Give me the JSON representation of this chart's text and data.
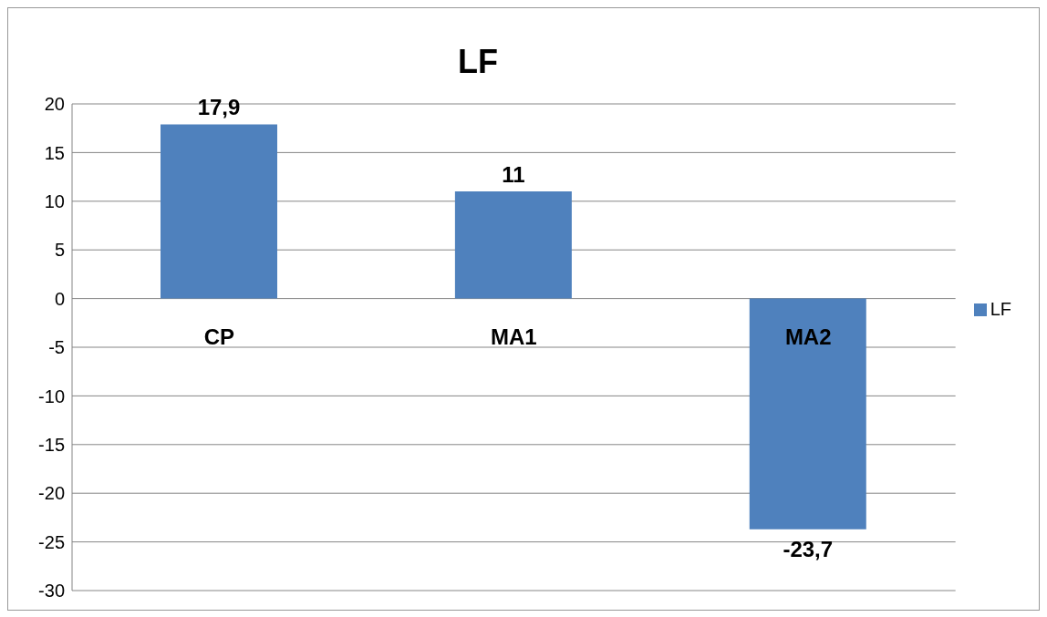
{
  "chart_data": {
    "type": "bar",
    "title": "LF",
    "categories": [
      "CP",
      "MA1",
      "MA2"
    ],
    "series": [
      {
        "name": "LF",
        "color": "#4f81bd",
        "values": [
          17.9,
          11,
          -23.7
        ],
        "value_labels": [
          "17,9",
          "11",
          "-23,7"
        ]
      }
    ],
    "ylim": [
      -30,
      20
    ],
    "yticks": [
      -30,
      -25,
      -20,
      -15,
      -10,
      -5,
      0,
      5,
      10,
      15,
      20
    ],
    "grid": "y",
    "legend": "right"
  }
}
